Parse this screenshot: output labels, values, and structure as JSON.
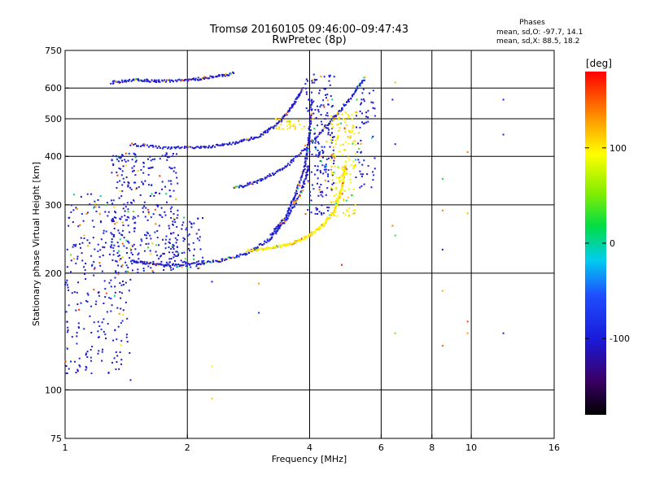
{
  "chart_data": {
    "type": "scatter",
    "title": "Tromsø 20160105 09:46:00–09:47:43",
    "subtitle": "RwPretec (8p)",
    "xlabel": "Frequency [MHz]",
    "ylabel": "Stationary phase Virtual Height [km]",
    "x_scale": "log",
    "y_scale": "log",
    "xlim": [
      1,
      16
    ],
    "ylim": [
      75,
      750
    ],
    "x_ticks": [
      1,
      2,
      4,
      6,
      8,
      10,
      16
    ],
    "y_ticks": [
      75,
      100,
      200,
      300,
      400,
      500,
      600,
      750
    ],
    "x_grid": [
      2,
      4,
      6,
      8,
      10
    ],
    "y_grid": [
      100,
      200,
      300,
      400,
      500,
      600
    ],
    "grid": true,
    "phase_stats": {
      "title": "Phases",
      "line_o": "mean, sd,O: -97.7, 14.1",
      "line_x": "mean, sd,X:  88.5, 18.2"
    },
    "colorbar": {
      "label": "[deg]",
      "range": [
        -180,
        180
      ],
      "ticks": [
        100,
        0,
        -100
      ],
      "tick_labels": [
        "100",
        "0",
        "-100"
      ]
    },
    "traces": [
      {
        "name": "o-F-lower",
        "phase": -100,
        "f": [
          1.45,
          1.7,
          2.0,
          2.4,
          2.8,
          3.2,
          3.5,
          3.8,
          4.0
        ],
        "h": [
          215,
          210,
          210,
          215,
          225,
          245,
          275,
          320,
          380
        ]
      },
      {
        "name": "x-F-lower",
        "phase": 100,
        "f": [
          2.8,
          3.2,
          3.6,
          4.0,
          4.3,
          4.6,
          4.8,
          4.9
        ],
        "h": [
          228,
          232,
          238,
          250,
          265,
          290,
          330,
          380
        ]
      },
      {
        "name": "o-F-steep",
        "phase": -100,
        "f": [
          3.2,
          3.5,
          3.7,
          3.9,
          4.0,
          4.05
        ],
        "h": [
          250,
          280,
          320,
          380,
          450,
          560
        ]
      },
      {
        "name": "o-F-upper",
        "phase": -100,
        "f": [
          1.45,
          1.8,
          2.2,
          2.6,
          3.0,
          3.3,
          3.6,
          3.85
        ],
        "h": [
          430,
          420,
          422,
          432,
          450,
          480,
          530,
          600
        ]
      },
      {
        "name": "o-F-upper-2",
        "phase": -100,
        "f": [
          2.6,
          3.0,
          3.5,
          4.0,
          4.5,
          5.0,
          5.5
        ],
        "h": [
          330,
          345,
          375,
          430,
          490,
          560,
          640
        ]
      },
      {
        "name": "o-multi-top",
        "phase": -100,
        "f": [
          1.3,
          1.5,
          1.7,
          2.0,
          2.3,
          2.6
        ],
        "h": [
          620,
          630,
          625,
          628,
          640,
          655
        ]
      }
    ],
    "clusters": [
      {
        "name": "o-low-freq-cloud",
        "phase": -100,
        "f_range": [
          1.0,
          1.45
        ],
        "h_range": [
          110,
          320
        ],
        "count": 280
      },
      {
        "name": "o-spread-F",
        "phase": -100,
        "f_range": [
          1.3,
          1.9
        ],
        "h_range": [
          200,
          410
        ],
        "count": 320
      },
      {
        "name": "o-spread-mid",
        "phase": -100,
        "f_range": [
          1.8,
          2.2
        ],
        "h_range": [
          205,
          280
        ],
        "count": 80
      },
      {
        "name": "o-vertical-4MHz",
        "phase": -100,
        "f_range": [
          3.9,
          4.6
        ],
        "h_range": [
          280,
          650
        ],
        "count": 200
      },
      {
        "name": "x-vertical-4.8MHz",
        "phase": 100,
        "f_range": [
          4.5,
          5.2
        ],
        "h_range": [
          280,
          520
        ],
        "count": 170
      },
      {
        "name": "o-right-edge",
        "phase": -100,
        "f_range": [
          5.2,
          5.8
        ],
        "h_range": [
          330,
          600
        ],
        "count": 60
      },
      {
        "name": "x-upper-patch",
        "phase": 100,
        "f_range": [
          3.3,
          3.9
        ],
        "h_range": [
          470,
          500
        ],
        "count": 30
      }
    ],
    "scattered_points": [
      {
        "f": 6.5,
        "h": 620,
        "phase": 120
      },
      {
        "f": 6.4,
        "h": 560,
        "phase": -100
      },
      {
        "f": 6.5,
        "h": 430,
        "phase": -100
      },
      {
        "f": 6.4,
        "h": 265,
        "phase": 140
      },
      {
        "f": 6.5,
        "h": 250,
        "phase": 30
      },
      {
        "f": 6.5,
        "h": 140,
        "phase": 50
      },
      {
        "f": 8.5,
        "h": 350,
        "phase": 20
      },
      {
        "f": 8.5,
        "h": 290,
        "phase": 140
      },
      {
        "f": 8.5,
        "h": 230,
        "phase": -100
      },
      {
        "f": 8.5,
        "h": 180,
        "phase": 120
      },
      {
        "f": 8.5,
        "h": 130,
        "phase": 150
      },
      {
        "f": 9.8,
        "h": 410,
        "phase": 140
      },
      {
        "f": 9.8,
        "h": 285,
        "phase": 120
      },
      {
        "f": 9.8,
        "h": 150,
        "phase": 160
      },
      {
        "f": 9.8,
        "h": 140,
        "phase": 130
      },
      {
        "f": 12.0,
        "h": 560,
        "phase": -100
      },
      {
        "f": 12.0,
        "h": 455,
        "phase": -100
      },
      {
        "f": 12.0,
        "h": 140,
        "phase": -100
      },
      {
        "f": 2.3,
        "h": 190,
        "phase": -100
      },
      {
        "f": 2.3,
        "h": 115,
        "phase": 100
      },
      {
        "f": 2.3,
        "h": 95,
        "phase": 110
      },
      {
        "f": 3.0,
        "h": 188,
        "phase": 130
      },
      {
        "f": 3.0,
        "h": 158,
        "phase": -80
      },
      {
        "f": 4.8,
        "h": 210,
        "phase": 170
      },
      {
        "f": 1.45,
        "h": 106,
        "phase": -100
      }
    ]
  }
}
